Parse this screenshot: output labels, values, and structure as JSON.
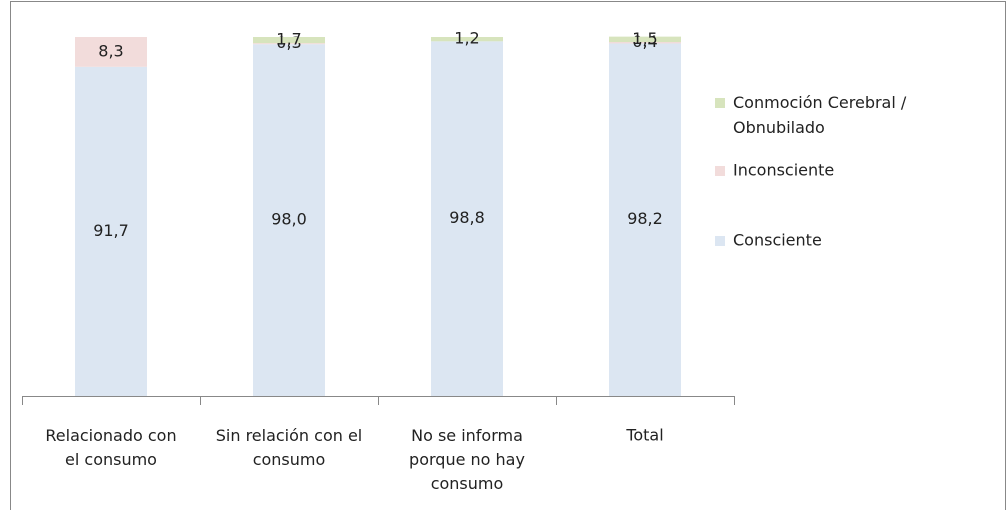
{
  "chart_data": {
    "type": "stacked-bar",
    "categories": [
      "Relacionado con\nel consumo",
      "Sin relación con el\nconsumo",
      "No se informa\nporque no hay\nconsumo",
      "Total"
    ],
    "series": [
      {
        "name": "Consciente",
        "color": "#dce6f2",
        "values": [
          91.7,
          98.0,
          98.8,
          98.2
        ],
        "value_labels": [
          "91,7",
          "98,0",
          "98,8",
          "98,2"
        ]
      },
      {
        "name": "Inconsciente",
        "color": "#f2dcdb",
        "values": [
          8.3,
          0.3,
          0,
          0.4
        ],
        "value_labels": [
          "8,3",
          "0,3",
          null,
          "0,4"
        ]
      },
      {
        "name": "Conmoción Cerebral /\nObnubilado",
        "color": "#d7e4bd",
        "values": [
          0,
          1.7,
          1.2,
          1.5
        ],
        "value_labels": [
          null,
          "1,7",
          "1,2",
          "1,5"
        ]
      }
    ],
    "ylim": [
      0,
      100
    ],
    "legend": "right"
  }
}
